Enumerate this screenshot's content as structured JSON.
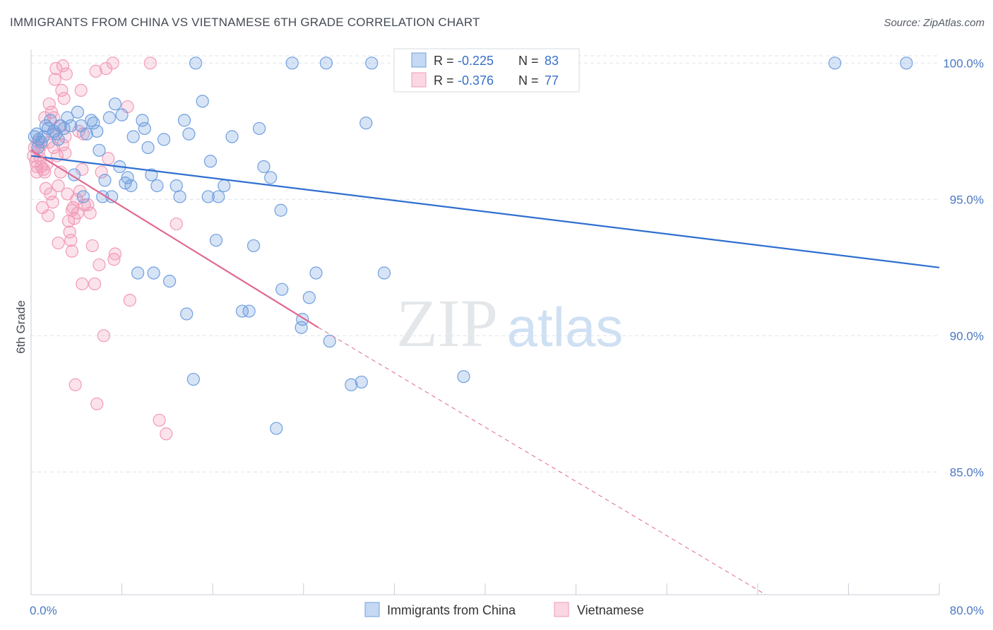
{
  "title": "IMMIGRANTS FROM CHINA VS VIETNAMESE 6TH GRADE CORRELATION CHART",
  "source": "Source: ZipAtlas.com",
  "watermark": {
    "zip": "ZIP",
    "atlas": "atlas"
  },
  "colors": {
    "china": "#6f9fe0",
    "china_line": "#2f6fd0",
    "vietnamese": "#f29ab8",
    "vietnamese_line": "#e06890",
    "grid": "#dde3ea",
    "tick_label": "#4a78c2"
  },
  "legend": {
    "r_label": "R =",
    "n_label": "N =",
    "rows": [
      {
        "series": "china",
        "r": "-0.225",
        "n": "83"
      },
      {
        "series": "vietnamese",
        "r": "-0.376",
        "n": "77"
      }
    ]
  },
  "chart_data": {
    "type": "scatter",
    "ylabel": "6th Grade",
    "xlim": [
      0,
      80
    ],
    "ylim": [
      80.5,
      100.5
    ],
    "x_tick_labels": [
      "0.0%",
      "80.0%"
    ],
    "y_ticks": [
      {
        "value": 100,
        "label": "100.0%"
      },
      {
        "value": 95,
        "label": "95.0%"
      },
      {
        "value": 90,
        "label": "90.0%"
      },
      {
        "value": 85,
        "label": "85.0%"
      }
    ],
    "series": [
      {
        "name": "Immigrants from China",
        "key": "china",
        "trend": {
          "x0": 0,
          "y0": 96.6,
          "x1": 80,
          "y1": 92.5
        },
        "points": [
          [
            0.3,
            97.3
          ],
          [
            0.5,
            97.4
          ],
          [
            0.6,
            96.9
          ],
          [
            0.7,
            97.2
          ],
          [
            0.9,
            97.1
          ],
          [
            1.1,
            97.3
          ],
          [
            1.3,
            97.7
          ],
          [
            1.5,
            97.6
          ],
          [
            1.7,
            97.9
          ],
          [
            2.0,
            97.5
          ],
          [
            2.2,
            97.4
          ],
          [
            2.4,
            97.2
          ],
          [
            2.6,
            97.7
          ],
          [
            2.9,
            97.6
          ],
          [
            3.2,
            98.0
          ],
          [
            3.5,
            97.7
          ],
          [
            3.8,
            95.9
          ],
          [
            4.1,
            98.2
          ],
          [
            4.4,
            97.7
          ],
          [
            4.6,
            95.1
          ],
          [
            4.9,
            97.4
          ],
          [
            5.3,
            97.9
          ],
          [
            5.5,
            97.8
          ],
          [
            5.8,
            97.5
          ],
          [
            6.0,
            96.8
          ],
          [
            6.3,
            95.1
          ],
          [
            6.5,
            95.7
          ],
          [
            6.9,
            98.0
          ],
          [
            7.1,
            95.1
          ],
          [
            7.4,
            98.5
          ],
          [
            7.8,
            96.2
          ],
          [
            8.0,
            98.1
          ],
          [
            8.3,
            95.6
          ],
          [
            8.5,
            95.8
          ],
          [
            8.8,
            95.5
          ],
          [
            9.0,
            97.3
          ],
          [
            9.4,
            92.3
          ],
          [
            9.8,
            97.9
          ],
          [
            10.0,
            97.6
          ],
          [
            10.3,
            96.9
          ],
          [
            10.6,
            95.9
          ],
          [
            10.8,
            92.3
          ],
          [
            11.1,
            95.5
          ],
          [
            11.7,
            97.2
          ],
          [
            12.2,
            92.0
          ],
          [
            12.8,
            95.5
          ],
          [
            13.1,
            95.1
          ],
          [
            13.5,
            97.9
          ],
          [
            13.7,
            90.8
          ],
          [
            13.9,
            97.4
          ],
          [
            14.3,
            88.4
          ],
          [
            14.5,
            100.0
          ],
          [
            15.1,
            98.6
          ],
          [
            15.8,
            96.4
          ],
          [
            15.6,
            95.1
          ],
          [
            16.3,
            93.5
          ],
          [
            16.5,
            95.1
          ],
          [
            17.0,
            95.5
          ],
          [
            17.7,
            97.3
          ],
          [
            18.6,
            90.9
          ],
          [
            19.2,
            90.9
          ],
          [
            19.6,
            93.3
          ],
          [
            20.1,
            97.6
          ],
          [
            20.5,
            96.2
          ],
          [
            21.1,
            95.8
          ],
          [
            22.0,
            94.6
          ],
          [
            22.1,
            91.7
          ],
          [
            21.6,
            86.6
          ],
          [
            23.0,
            100.0
          ],
          [
            23.8,
            90.3
          ],
          [
            23.9,
            90.6
          ],
          [
            24.5,
            91.4
          ],
          [
            25.1,
            92.3
          ],
          [
            26.0,
            100.0
          ],
          [
            26.3,
            89.8
          ],
          [
            28.2,
            88.2
          ],
          [
            29.1,
            88.3
          ],
          [
            29.5,
            97.8
          ],
          [
            30.0,
            100.0
          ],
          [
            31.1,
            92.3
          ],
          [
            38.1,
            88.5
          ],
          [
            70.8,
            100.0
          ],
          [
            77.1,
            100.0
          ]
        ]
      },
      {
        "name": "Vietnamese",
        "key": "vietnamese",
        "trend": {
          "x0": 0,
          "y0": 96.8,
          "x1": 25.3,
          "y1": 90.3
        },
        "trend_ext": {
          "x0": 25.3,
          "y0": 90.3,
          "x1": 64.7,
          "y1": 80.5
        },
        "points": [
          [
            0.2,
            96.6
          ],
          [
            0.3,
            96.9
          ],
          [
            0.4,
            96.4
          ],
          [
            0.5,
            96.2
          ],
          [
            0.6,
            97.1
          ],
          [
            0.7,
            96.8
          ],
          [
            0.8,
            96.5
          ],
          [
            0.9,
            97.0
          ],
          [
            1.0,
            94.7
          ],
          [
            1.1,
            96.1
          ],
          [
            1.2,
            98.0
          ],
          [
            1.3,
            95.4
          ],
          [
            1.4,
            96.3
          ],
          [
            1.5,
            94.4
          ],
          [
            1.6,
            97.1
          ],
          [
            1.7,
            95.2
          ],
          [
            1.8,
            98.2
          ],
          [
            1.9,
            94.9
          ],
          [
            2.0,
            98.0
          ],
          [
            2.1,
            99.4
          ],
          [
            2.2,
            99.8
          ],
          [
            2.3,
            96.6
          ],
          [
            2.4,
            93.4
          ],
          [
            2.5,
            97.7
          ],
          [
            2.6,
            96.0
          ],
          [
            2.7,
            99.0
          ],
          [
            2.8,
            97.0
          ],
          [
            2.9,
            98.7
          ],
          [
            3.0,
            96.7
          ],
          [
            3.1,
            99.6
          ],
          [
            3.2,
            95.2
          ],
          [
            3.3,
            94.2
          ],
          [
            3.4,
            93.8
          ],
          [
            3.5,
            93.5
          ],
          [
            3.6,
            93.1
          ],
          [
            3.7,
            94.7
          ],
          [
            3.8,
            94.3
          ],
          [
            3.9,
            88.2
          ],
          [
            4.0,
            95.0
          ],
          [
            4.1,
            94.5
          ],
          [
            4.2,
            97.5
          ],
          [
            4.3,
            95.3
          ],
          [
            4.4,
            99.0
          ],
          [
            4.5,
            96.1
          ],
          [
            4.6,
            97.4
          ],
          [
            4.7,
            94.8
          ],
          [
            5.0,
            94.8
          ],
          [
            5.2,
            94.5
          ],
          [
            5.4,
            93.3
          ],
          [
            5.6,
            91.9
          ],
          [
            5.8,
            87.5
          ],
          [
            6.0,
            92.6
          ],
          [
            6.2,
            96.0
          ],
          [
            6.4,
            90.0
          ],
          [
            6.6,
            99.8
          ],
          [
            6.8,
            96.5
          ],
          [
            7.2,
            100.0
          ],
          [
            7.3,
            92.8
          ],
          [
            7.4,
            93.0
          ],
          [
            8.5,
            98.4
          ],
          [
            8.7,
            91.3
          ],
          [
            10.5,
            100.0
          ],
          [
            11.3,
            86.9
          ],
          [
            11.9,
            86.4
          ],
          [
            12.8,
            94.1
          ],
          [
            1.2,
            96.0
          ],
          [
            2.0,
            96.9
          ],
          [
            3.0,
            97.3
          ],
          [
            0.9,
            96.2
          ],
          [
            2.4,
            95.5
          ],
          [
            4.5,
            91.9
          ],
          [
            1.6,
            98.5
          ],
          [
            5.7,
            99.7
          ],
          [
            3.6,
            94.6
          ],
          [
            0.5,
            96.0
          ],
          [
            1.9,
            97.4
          ],
          [
            2.8,
            99.9
          ]
        ]
      }
    ]
  },
  "bottom_legend": [
    {
      "key": "china",
      "label": "Immigrants from China"
    },
    {
      "key": "vietnamese",
      "label": "Vietnamese"
    }
  ]
}
